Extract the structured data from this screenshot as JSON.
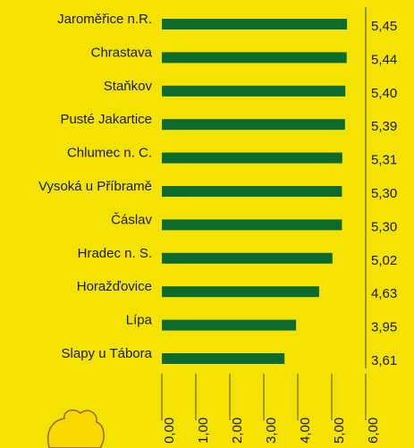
{
  "chart_data": {
    "type": "bar",
    "orientation": "horizontal",
    "categories": [
      "Jaroměřice n.R.",
      "Chrastava",
      "Staňkov",
      "Pusté Jakartice",
      "Chlumec n. C.",
      "Vysoká u Příbramě",
      "Čáslav",
      "Hradec n. S.",
      "Horažďovice",
      "Lípa",
      "Slapy u Tábora"
    ],
    "values": [
      5.45,
      5.44,
      5.4,
      5.39,
      5.31,
      5.3,
      5.3,
      5.02,
      4.63,
      3.95,
      3.61
    ],
    "value_labels": [
      "5,45",
      "5,44",
      "5,40",
      "5,39",
      "5,31",
      "5,30",
      "5,30",
      "5,02",
      "4,63",
      "3,95",
      "3,61"
    ],
    "color": "#0b6a2c",
    "xlim": [
      0,
      6
    ],
    "xticks": [
      {
        "value": 0,
        "label": "0,00"
      },
      {
        "value": 1,
        "label": "1,00"
      },
      {
        "value": 2,
        "label": "2,00"
      },
      {
        "value": 3,
        "label": "3,00"
      },
      {
        "value": 4,
        "label": "4,00"
      },
      {
        "value": 5,
        "label": "5,00"
      },
      {
        "value": 6,
        "label": "6,00"
      }
    ]
  }
}
